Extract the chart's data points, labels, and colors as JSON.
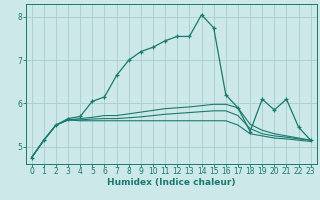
{
  "xlabel": "Humidex (Indice chaleur)",
  "bg_color": "#cce8e8",
  "grid_color": "#aacccc",
  "line_color": "#1a7a6e",
  "xlim": [
    -0.5,
    23.5
  ],
  "ylim": [
    4.6,
    8.3
  ],
  "xticks": [
    0,
    1,
    2,
    3,
    4,
    5,
    6,
    7,
    8,
    9,
    10,
    11,
    12,
    13,
    14,
    15,
    16,
    17,
    18,
    19,
    20,
    21,
    22,
    23
  ],
  "yticks": [
    5,
    6,
    7,
    8
  ],
  "series": [
    {
      "x": [
        0,
        1,
        2,
        3,
        4,
        5,
        6,
        7,
        8,
        9,
        10,
        11,
        12,
        13,
        14,
        15,
        16,
        17,
        18,
        19,
        20,
        21,
        22,
        23
      ],
      "y": [
        4.75,
        5.15,
        5.5,
        5.65,
        5.7,
        6.05,
        6.15,
        6.65,
        7.0,
        7.2,
        7.3,
        7.45,
        7.55,
        7.55,
        8.05,
        7.75,
        6.2,
        5.9,
        5.35,
        6.1,
        5.85,
        6.1,
        5.45,
        5.15
      ],
      "marker": "+"
    },
    {
      "x": [
        0,
        1,
        2,
        3,
        4,
        5,
        6,
        7,
        8,
        9,
        10,
        11,
        12,
        13,
        14,
        15,
        16,
        17,
        18,
        19,
        20,
        21,
        22,
        23
      ],
      "y": [
        4.75,
        5.15,
        5.5,
        5.62,
        5.65,
        5.68,
        5.72,
        5.72,
        5.76,
        5.8,
        5.84,
        5.88,
        5.9,
        5.92,
        5.95,
        5.98,
        5.98,
        5.9,
        5.52,
        5.38,
        5.3,
        5.25,
        5.2,
        5.15
      ],
      "marker": null
    },
    {
      "x": [
        0,
        1,
        2,
        3,
        4,
        5,
        6,
        7,
        8,
        9,
        10,
        11,
        12,
        13,
        14,
        15,
        16,
        17,
        18,
        19,
        20,
        21,
        22,
        23
      ],
      "y": [
        4.75,
        5.15,
        5.5,
        5.62,
        5.62,
        5.64,
        5.65,
        5.65,
        5.67,
        5.69,
        5.72,
        5.75,
        5.77,
        5.79,
        5.81,
        5.83,
        5.83,
        5.72,
        5.42,
        5.3,
        5.25,
        5.22,
        5.18,
        5.15
      ],
      "marker": null
    },
    {
      "x": [
        0,
        1,
        2,
        3,
        4,
        5,
        6,
        7,
        8,
        9,
        10,
        11,
        12,
        13,
        14,
        15,
        16,
        17,
        18,
        19,
        20,
        21,
        22,
        23
      ],
      "y": [
        4.75,
        5.15,
        5.5,
        5.62,
        5.6,
        5.6,
        5.6,
        5.6,
        5.6,
        5.6,
        5.6,
        5.6,
        5.6,
        5.6,
        5.6,
        5.6,
        5.6,
        5.5,
        5.3,
        5.25,
        5.2,
        5.18,
        5.15,
        5.12
      ],
      "marker": null
    }
  ]
}
